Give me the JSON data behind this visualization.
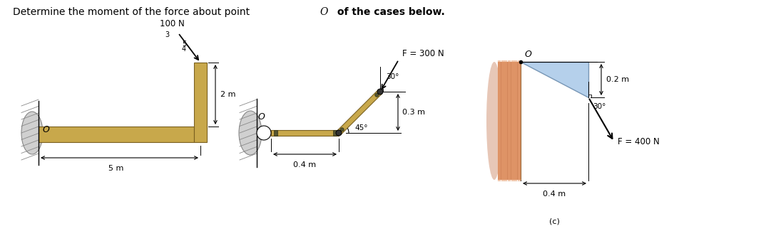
{
  "beam_color": "#c8a84b",
  "beam_edge": "#7a6020",
  "wall_gray": "#b0b0b0",
  "wall_gray_edge": "#555555",
  "wall_salmon": "#d2855a",
  "wall_salmon_line": "#c06030",
  "tri_color": "#a8c8e8",
  "tri_edge": "#6688aa",
  "case1": {
    "force_label": "100 N",
    "ratio": [
      "3",
      "4",
      "5"
    ],
    "dim_h": "5 m",
    "dim_v": "2 m",
    "O_label": "O"
  },
  "case2": {
    "F_label": "F = 300 N",
    "angle1": "30°",
    "angle2": "45°",
    "dim_h": "0.4 m",
    "dim_slant": "0.3 m",
    "O_label": "O"
  },
  "case3": {
    "F_label": "F = 400 N",
    "angle": "30°",
    "dim_h": "0.4 m",
    "dim_v": "0.2 m",
    "O_label": "O",
    "sub_label": "(c)"
  }
}
